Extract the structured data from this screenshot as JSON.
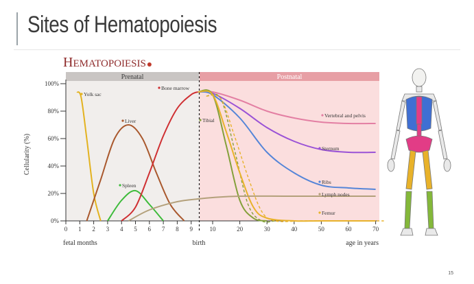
{
  "slide": {
    "title": "Sites of Hematopoiesis",
    "page_number": "15"
  },
  "chart_data": {
    "type": "line",
    "title": "Hematopoiesis",
    "ylabel": "Cellularity (%)",
    "xlabel_left": "fetal months",
    "xlabel_right": "age in years",
    "birth_label": "birth",
    "ylim": [
      0,
      100
    ],
    "y_ticks": [
      "0%",
      "20%",
      "40%",
      "60%",
      "80%",
      "100%"
    ],
    "fetal_ticks": [
      "0",
      "1",
      "2",
      "3",
      "4",
      "5",
      "6",
      "7",
      "8",
      "9"
    ],
    "year_ticks": [
      "10",
      "20",
      "30",
      "40",
      "50",
      "60",
      "70"
    ],
    "bands": {
      "prenatal": "Prenatal",
      "postnatal": "Postnatal"
    },
    "colors": {
      "yolk_sac": "#e3b21f",
      "liver": "#a9582d",
      "spleen": "#3dbb3a",
      "bone_marrow": "#cf2f32",
      "vertebral": "#e37fa3",
      "sternum": "#9a52d6",
      "ribs": "#5585d8",
      "tibia": "#84a03a",
      "femur": "#e8b22a",
      "lymph": "#b3a07a",
      "accent": "#c0392b"
    },
    "prenatal_series": [
      {
        "name": "Yolk sac",
        "color_key": "yolk_sac",
        "x": [
          0.8,
          1.1,
          1.5,
          2.0,
          2.5
        ],
        "y": [
          94,
          90,
          60,
          20,
          0
        ]
      },
      {
        "name": "Liver",
        "color_key": "liver",
        "x": [
          1.5,
          2.5,
          3.5,
          4.5,
          5.5,
          6.5,
          7.5,
          8.5
        ],
        "y": [
          0,
          30,
          60,
          70,
          60,
          35,
          12,
          0
        ]
      },
      {
        "name": "Spleen",
        "color_key": "spleen",
        "x": [
          3.0,
          4.0,
          5.0,
          6.0,
          7.0
        ],
        "y": [
          0,
          15,
          22,
          12,
          0
        ]
      },
      {
        "name": "Bone marrow",
        "color_key": "bone_marrow",
        "x": [
          4.0,
          5.0,
          6.0,
          7.0,
          8.0,
          9.0,
          9.5
        ],
        "y": [
          0,
          10,
          35,
          62,
          82,
          92,
          94
        ]
      }
    ],
    "postnatal_series": [
      {
        "name": "Vertebral and pelvis",
        "color_key": "vertebral",
        "x": [
          9.5,
          10,
          20,
          30,
          40,
          50,
          60,
          70
        ],
        "y": [
          94,
          94,
          88,
          80,
          75,
          72,
          71,
          71
        ]
      },
      {
        "name": "Sternum",
        "color_key": "sternum",
        "x": [
          9.5,
          10,
          20,
          30,
          40,
          50,
          60,
          70
        ],
        "y": [
          94,
          93,
          82,
          68,
          58,
          52,
          50,
          50
        ]
      },
      {
        "name": "Ribs",
        "color_key": "ribs",
        "x": [
          9.5,
          10,
          20,
          30,
          40,
          50,
          60,
          70
        ],
        "y": [
          94,
          92,
          75,
          50,
          35,
          26,
          24,
          23
        ]
      },
      {
        "name": "Tibial",
        "color_key": "tibia",
        "x": [
          9.5,
          10,
          15,
          20,
          25,
          30
        ],
        "y": [
          94,
          92,
          55,
          15,
          2,
          0
        ]
      },
      {
        "name": "Femur",
        "color_key": "femur",
        "x": [
          9.5,
          10,
          15,
          20,
          25,
          30,
          40,
          50,
          70
        ],
        "y": [
          94,
          92,
          65,
          35,
          10,
          2,
          0,
          0,
          0
        ]
      },
      {
        "name": "Lymph nodes",
        "color_key": "lymph",
        "x": [
          4.5,
          6,
          8,
          9.5,
          10,
          20,
          40,
          70
        ],
        "y": [
          0,
          8,
          14,
          16,
          17,
          18,
          18,
          18
        ]
      }
    ],
    "labels": [
      {
        "text": "Yolk sac",
        "color_key": "yolk_sac"
      },
      {
        "text": "Liver",
        "color_key": "liver"
      },
      {
        "text": "Spleen",
        "color_key": "spleen"
      },
      {
        "text": "Bone marrow",
        "color_key": "bone_marrow"
      },
      {
        "text": "Tibial",
        "color_key": "tibia"
      },
      {
        "text": "Vertebral and pelvis",
        "color_key": "vertebral"
      },
      {
        "text": "Sternum",
        "color_key": "sternum"
      },
      {
        "text": "Ribs",
        "color_key": "ribs"
      },
      {
        "text": "Lymph nodes",
        "color_key": "lymph"
      },
      {
        "text": "Femur",
        "color_key": "femur"
      }
    ]
  }
}
